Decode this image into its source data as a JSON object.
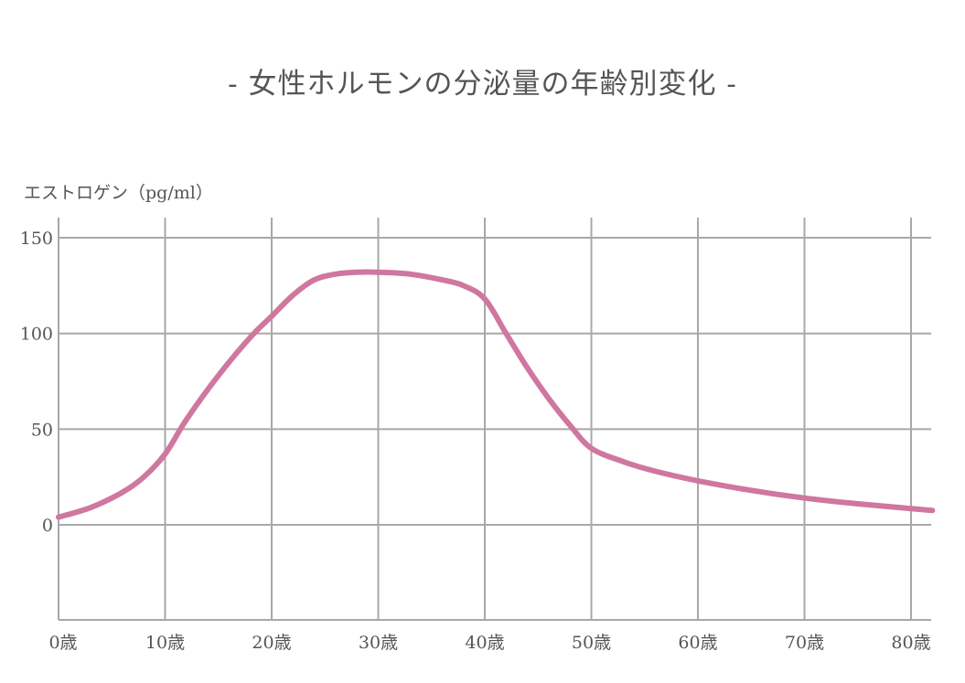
{
  "title": "-  女性ホルモンの分泌量の年齢別変化  -",
  "chart_data": {
    "type": "line",
    "title": "女性ホルモンの分泌量の年齢別変化",
    "ylabel": "エストロゲン（pg/ml）",
    "xlabel": "",
    "x_tick_labels": [
      "0歳",
      "10歳",
      "20歳",
      "30歳",
      "40歳",
      "50歳",
      "60歳",
      "70歳",
      "80歳"
    ],
    "x_ticks": [
      0,
      10,
      20,
      30,
      40,
      50,
      60,
      70,
      80
    ],
    "y_tick_labels": [
      "150",
      "100",
      "50",
      "0"
    ],
    "y_ticks": [
      150,
      100,
      50,
      0
    ],
    "xlim": [
      0,
      82
    ],
    "ylim": [
      -50,
      160
    ],
    "grid": true,
    "legend": null,
    "series": [
      {
        "name": "エストロゲン",
        "color": "#cf77a0",
        "x": [
          0,
          3,
          6,
          8,
          10,
          12,
          15,
          18,
          20,
          22,
          24,
          26,
          28,
          30,
          33,
          36,
          38,
          40,
          42,
          44,
          46,
          48,
          50,
          53,
          56,
          60,
          65,
          70,
          75,
          80,
          82
        ],
        "y": [
          4,
          9,
          17,
          25,
          37,
          55,
          78,
          98,
          109,
          120,
          128,
          131,
          132,
          132,
          131,
          128,
          125,
          118,
          100,
          82,
          66,
          52,
          40,
          33,
          28,
          23,
          18,
          14,
          11,
          8.5,
          7.5
        ]
      }
    ]
  },
  "colors": {
    "curve": "#cf77a0",
    "grid": "#a8a8a8",
    "text": "#555555"
  }
}
